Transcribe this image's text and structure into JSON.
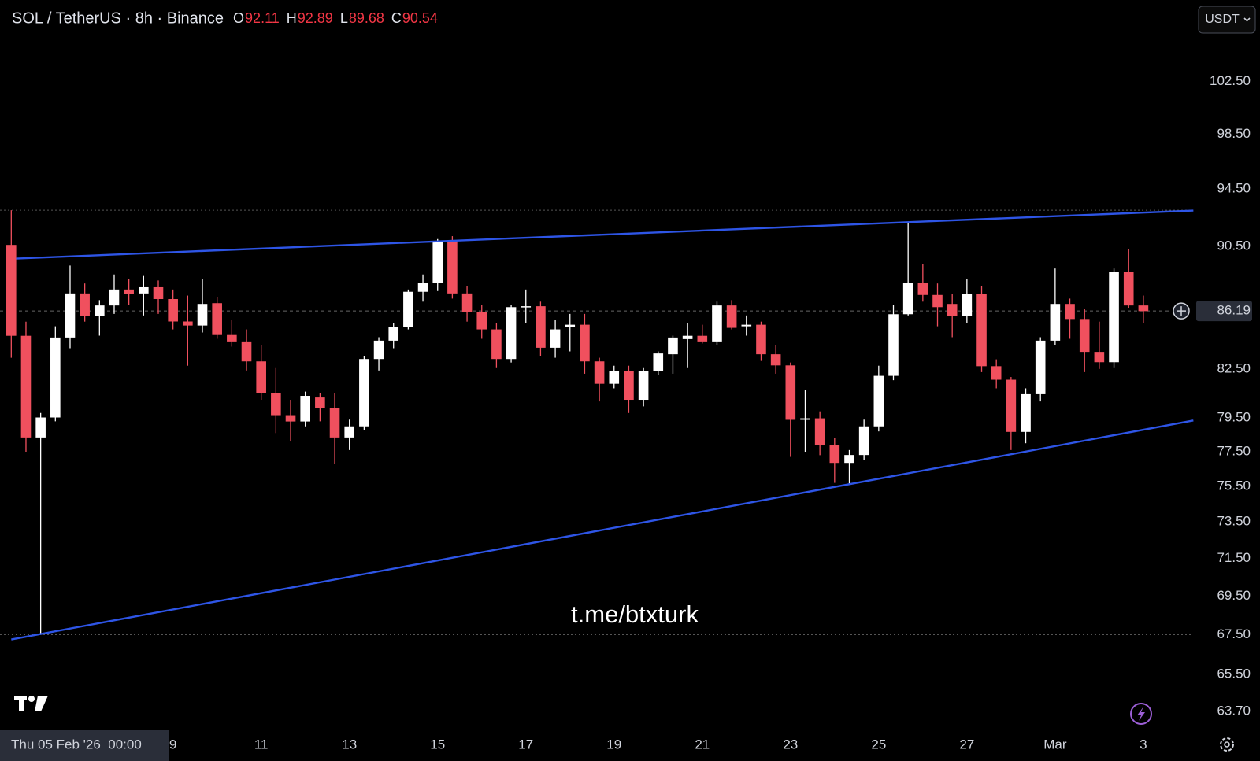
{
  "chart_data": {
    "type": "candlestick",
    "title": "SOL / TetherUS · 8h · Binance",
    "ohlc_legend": [
      {
        "label": "O",
        "value": 92.11
      },
      {
        "label": "H",
        "value": 92.89
      },
      {
        "label": "L",
        "value": 89.68
      },
      {
        "label": "C",
        "value": 90.54
      }
    ],
    "currency": "USDT",
    "watermark": "t.me/btxturk",
    "crosshair_label": "Thu 05 Feb '26  00:00",
    "log": true,
    "up_color": "#ffffff",
    "down_color": "#f0505e",
    "categories": [
      null,
      null,
      null,
      null,
      null,
      null,
      null,
      null,
      null,
      null,
      null,
      "9",
      null,
      null,
      null,
      null,
      null,
      "11",
      null,
      null,
      null,
      null,
      null,
      "13",
      null,
      null,
      null,
      null,
      null,
      "15",
      null,
      null,
      null,
      null,
      null,
      "17",
      null,
      null,
      null,
      null,
      null,
      "19",
      null,
      null,
      null,
      null,
      null,
      "21",
      null,
      null,
      null,
      null,
      null,
      "23",
      null,
      null,
      null,
      null,
      null,
      "25",
      null,
      null,
      null,
      null,
      null,
      "27",
      null,
      null,
      null,
      null,
      null,
      "Mar",
      null,
      null,
      null,
      null,
      null,
      "3"
    ],
    "open": [
      90.6,
      84.59,
      78.34,
      79.53,
      84.48,
      87.34,
      85.87,
      86.55,
      87.6,
      87.34,
      87.75,
      86.97,
      85.51,
      85.25,
      86.7,
      84.64,
      84.23,
      82.97,
      80.99,
      79.67,
      79.29,
      80.74,
      80.11,
      78.34,
      79.0,
      83.12,
      84.28,
      85.15,
      87.45,
      88.05,
      90.87,
      87.34,
      86.13,
      85.0,
      83.12,
      86.44,
      86.5,
      83.83,
      85.15,
      85.3,
      82.97,
      81.58,
      82.37,
      80.6,
      82.37,
      83.42,
      84.38,
      84.59,
      84.23,
      86.55,
      85.2,
      85.3,
      83.42,
      82.72,
      79.39,
      79.48,
      77.87,
      76.85,
      77.31,
      79.0,
      82.07,
      85.98,
      88.05,
      87.24,
      86.65,
      85.87,
      87.29,
      82.67,
      81.83,
      78.67,
      80.94,
      84.28,
      86.65,
      85.67,
      83.57,
      82.92,
      88.75,
      86.55
    ],
    "high": [
      93.0,
      85.5,
      79.8,
      85.2,
      89.2,
      88.0,
      86.9,
      88.6,
      88.3,
      88.5,
      88.2,
      87.6,
      87.2,
      88.3,
      87.1,
      85.6,
      85.0,
      84.0,
      82.6,
      80.6,
      81.1,
      81.0,
      81.0,
      79.4,
      83.3,
      84.5,
      85.4,
      87.6,
      88.6,
      91.0,
      91.2,
      87.8,
      86.6,
      85.4,
      86.6,
      87.6,
      86.8,
      85.6,
      86.0,
      86.0,
      83.2,
      82.7,
      82.7,
      82.6,
      83.6,
      84.6,
      85.4,
      85.3,
      86.8,
      86.9,
      85.9,
      85.5,
      84.0,
      82.9,
      81.2,
      79.9,
      78.3,
      77.6,
      79.4,
      82.7,
      86.6,
      92.2,
      89.3,
      88.0,
      87.3,
      88.3,
      87.8,
      83.1,
      82.0,
      81.3,
      84.5,
      89.0,
      87.0,
      86.3,
      85.5,
      89.0,
      90.3,
      87.2
    ],
    "low": [
      83.2,
      77.5,
      67.5,
      79.3,
      83.8,
      85.5,
      84.6,
      86.0,
      86.6,
      85.9,
      86.0,
      85.0,
      82.7,
      84.8,
      84.4,
      83.9,
      82.4,
      80.6,
      78.6,
      78.1,
      79.0,
      79.3,
      76.8,
      77.6,
      78.8,
      82.4,
      83.8,
      85.0,
      86.8,
      87.5,
      87.0,
      85.5,
      84.4,
      82.6,
      82.9,
      85.4,
      83.3,
      83.2,
      83.6,
      82.2,
      80.5,
      81.3,
      79.8,
      80.2,
      82.1,
      82.2,
      82.6,
      84.1,
      84.0,
      85.0,
      84.6,
      83.0,
      82.2,
      77.2,
      77.5,
      77.3,
      75.7,
      75.6,
      77.0,
      78.7,
      81.8,
      85.9,
      86.8,
      85.2,
      84.5,
      85.4,
      82.3,
      81.3,
      77.6,
      78.0,
      80.5,
      84.0,
      84.4,
      82.3,
      82.5,
      82.6,
      86.4,
      85.4
    ],
    "close": [
      84.59,
      78.34,
      79.53,
      84.48,
      87.34,
      85.87,
      86.55,
      87.6,
      87.29,
      87.75,
      86.97,
      85.51,
      85.25,
      86.65,
      84.64,
      84.23,
      82.97,
      80.99,
      79.67,
      79.29,
      80.84,
      80.11,
      78.34,
      79.0,
      83.12,
      84.28,
      85.15,
      87.45,
      88.05,
      90.87,
      87.34,
      86.13,
      85.0,
      83.12,
      86.44,
      86.5,
      83.83,
      85.0,
      85.3,
      82.97,
      81.58,
      82.37,
      80.6,
      82.37,
      83.47,
      84.48,
      84.59,
      84.23,
      86.55,
      85.1,
      85.3,
      83.42,
      82.72,
      79.39,
      79.48,
      77.87,
      76.85,
      77.31,
      79.0,
      82.07,
      85.98,
      88.05,
      87.24,
      86.44,
      85.87,
      87.29,
      82.67,
      81.83,
      78.67,
      80.94,
      84.28,
      86.65,
      85.67,
      83.57,
      82.92,
      88.75,
      86.55,
      86.18
    ],
    "ylim": [
      62.8,
      109
    ],
    "yticks": [
      {
        "value": 102.5,
        "label": "102.50"
      },
      {
        "value": 98.5,
        "label": "98.50"
      },
      {
        "value": 94.5,
        "label": "94.50"
      },
      {
        "value": 90.5,
        "label": "90.50"
      },
      {
        "value": 82.5,
        "label": "82.50"
      },
      {
        "value": 79.5,
        "label": "79.50"
      },
      {
        "value": 77.5,
        "label": "77.50"
      },
      {
        "value": 75.5,
        "label": "75.50"
      },
      {
        "value": 73.5,
        "label": "73.50"
      },
      {
        "value": 71.5,
        "label": "71.50"
      },
      {
        "value": 69.5,
        "label": "69.50"
      },
      {
        "value": 67.5,
        "label": "67.50"
      },
      {
        "value": 65.5,
        "label": "65.50"
      },
      {
        "value": 63.7,
        "label": "63.70"
      }
    ],
    "last_price": 86.19,
    "hlines": [
      93.0,
      67.5
    ],
    "trendlines": [
      {
        "x": [
          0.33,
          80.4
        ],
        "y": [
          89.67,
          92.98
        ],
        "color": "#2e55e6"
      },
      {
        "x": [
          0,
          80.4
        ],
        "y": [
          67.26,
          79.35
        ],
        "color": "#2e55e6"
      }
    ]
  }
}
